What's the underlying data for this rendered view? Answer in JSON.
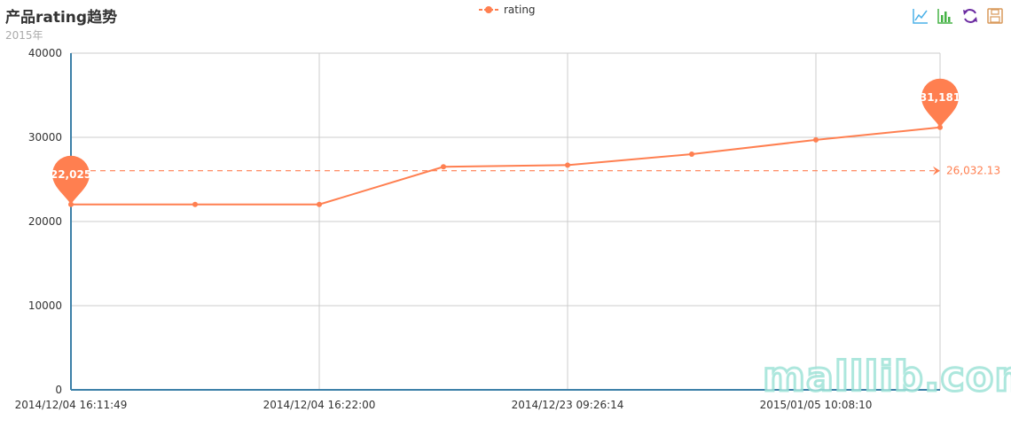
{
  "header": {
    "title": "产品rating趋势",
    "subtitle": "2015年"
  },
  "legend": {
    "label": "rating"
  },
  "toolbox": {
    "icons": [
      "line-chart-icon",
      "bar-chart-icon",
      "refresh-icon",
      "save-icon"
    ]
  },
  "watermark": {
    "text": "malllib.com"
  },
  "colors": {
    "series": "#ff7f50",
    "axis": "#3c80a8",
    "grid": "#cccccc"
  },
  "chart_data": {
    "type": "line",
    "series": [
      {
        "name": "rating",
        "values": [
          22025,
          22025,
          22025,
          26500,
          26700,
          28000,
          29700,
          31181
        ]
      }
    ],
    "x_labels": [
      "2014/12/04 16:11:49",
      "2014/12/04 16:22:00",
      "2014/12/23 09:26:14",
      "2015/01/05 10:08:10"
    ],
    "x_label_every": 2,
    "ylim": [
      0,
      40000
    ],
    "yticks": [
      0,
      10000,
      20000,
      30000,
      40000
    ],
    "mark_points": [
      {
        "index": 0,
        "label": "22,025"
      },
      {
        "index": 7,
        "label": "31,181"
      }
    ],
    "mark_line": {
      "value": 26032.13,
      "label": "26,032.13"
    },
    "grid": true,
    "legend_position": "top-center"
  }
}
